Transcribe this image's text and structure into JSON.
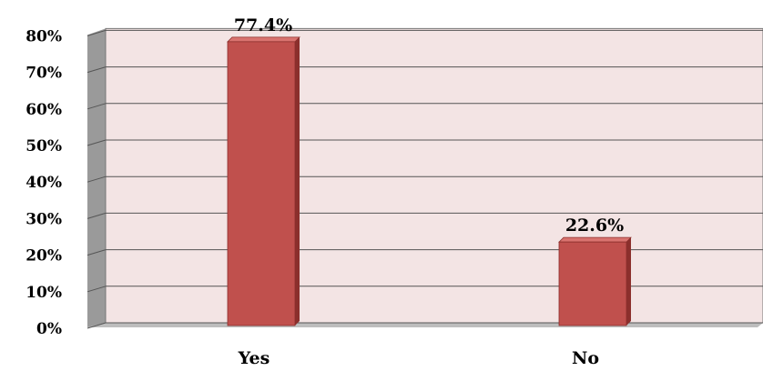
{
  "chart_data": {
    "type": "bar",
    "categories": [
      "Yes",
      "No"
    ],
    "values": [
      77.4,
      22.6
    ],
    "value_labels": [
      "77.4%",
      "22.6%"
    ],
    "title": "",
    "xlabel": "",
    "ylabel": "",
    "ylim": [
      0,
      80
    ],
    "y_ticks": [
      0,
      10,
      20,
      30,
      40,
      50,
      60,
      70,
      80
    ],
    "y_tick_labels": [
      "0%",
      "10%",
      "20%",
      "30%",
      "40%",
      "50%",
      "60%",
      "70%",
      "80%"
    ],
    "grid": true,
    "legend": "none",
    "style": "3d",
    "colors": {
      "bar": "#c0504d",
      "bar_side": "#8b2f2c",
      "bar_top": "#d9736f",
      "plot_back": "#f3e4e4",
      "wall_side": "#9a9a9a",
      "floor": "#bdbdbd",
      "grid": "#555555"
    }
  }
}
